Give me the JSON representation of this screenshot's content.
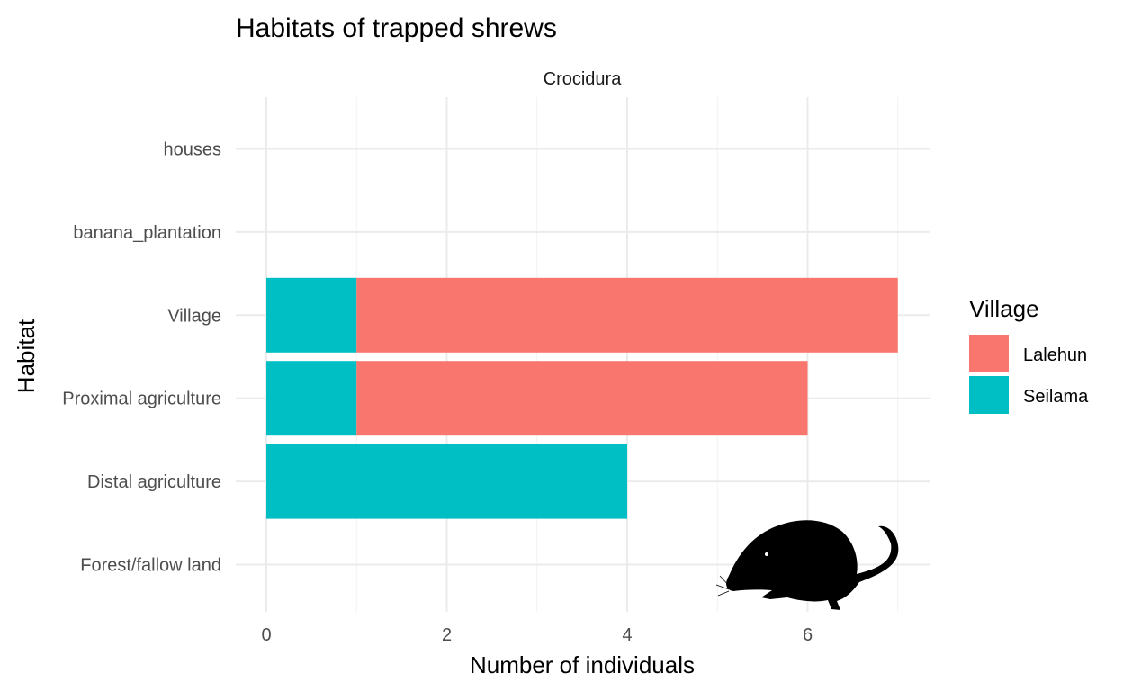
{
  "chart_data": {
    "type": "bar",
    "orientation": "horizontal",
    "stacked": true,
    "title": "Habitats of trapped shrews",
    "facet": "Crocidura",
    "xlabel": "Number of individuals",
    "ylabel": "Habitat",
    "categories": [
      "Forest/fallow land",
      "Distal agriculture",
      "Proximal agriculture",
      "Village",
      "banana_plantation",
      "houses"
    ],
    "series": [
      {
        "name": "Seilama",
        "color": "#00BFC4",
        "values": [
          0,
          4,
          1,
          1,
          0,
          0
        ]
      },
      {
        "name": "Lalehun",
        "color": "#F8766D",
        "values": [
          0,
          0,
          5,
          6,
          0,
          0
        ]
      }
    ],
    "legend_title": "Village",
    "legend_order": [
      "Lalehun",
      "Seilama"
    ],
    "xlim": [
      0,
      7.35
    ],
    "xticks": [
      0,
      2,
      4,
      6
    ],
    "xtick_labels": [
      "0",
      "2",
      "4",
      "6"
    ],
    "grid": true,
    "legend_position": "right"
  },
  "icons": {
    "silhouette": "shrew-silhouette-icon"
  }
}
